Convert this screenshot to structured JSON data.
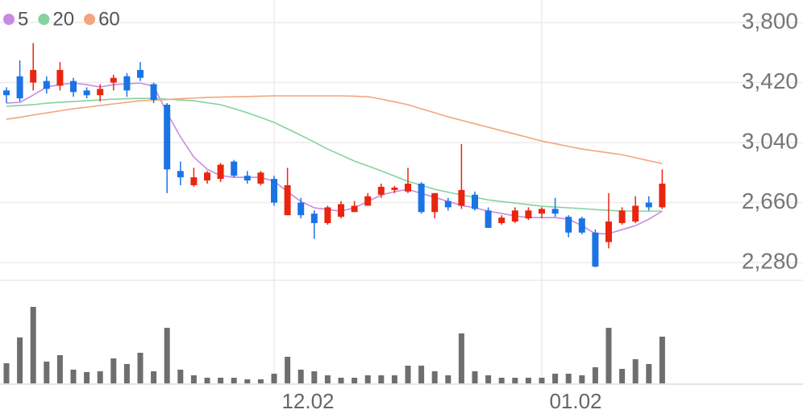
{
  "chart_data": {
    "type": "candlestick",
    "categories": [
      null,
      null,
      null,
      null,
      null,
      null,
      null,
      null,
      null,
      null,
      null,
      null,
      null,
      null,
      null,
      null,
      null,
      null,
      null,
      null,
      "12.02",
      null,
      null,
      null,
      null,
      null,
      null,
      null,
      null,
      null,
      null,
      null,
      null,
      null,
      null,
      null,
      null,
      null,
      null,
      null,
      "01.02",
      null,
      null,
      null,
      null,
      null,
      null,
      null,
      null,
      null
    ],
    "open": [
      3370,
      3460,
      3420,
      3430,
      3400,
      3430,
      3370,
      3340,
      3420,
      3460,
      3500,
      3410,
      3280,
      2860,
      2770,
      2800,
      2810,
      2920,
      2830,
      2780,
      2810,
      2580,
      2660,
      2590,
      2530,
      2570,
      2600,
      2640,
      2710,
      2740,
      2730,
      2780,
      2600,
      2670,
      2640,
      2710,
      2610,
      2530,
      2540,
      2560,
      2590,
      2620,
      2570,
      2560,
      2470,
      2410,
      2530,
      2540,
      2660,
      2630
    ],
    "high": [
      3390,
      3560,
      3670,
      3460,
      3550,
      3450,
      3390,
      3410,
      3470,
      3480,
      3550,
      3420,
      3290,
      2920,
      2880,
      2860,
      2910,
      2930,
      2860,
      2860,
      2830,
      2880,
      2690,
      2610,
      2640,
      2670,
      2670,
      2720,
      2780,
      2765,
      2880,
      2790,
      2720,
      2690,
      3030,
      2730,
      2630,
      2580,
      2630,
      2630,
      2630,
      2690,
      2580,
      2570,
      2490,
      2720,
      2630,
      2700,
      2700,
      2870
    ],
    "low": [
      3290,
      3300,
      3370,
      3350,
      3370,
      3330,
      3320,
      3300,
      3370,
      3330,
      3430,
      3290,
      2720,
      2770,
      2760,
      2780,
      2790,
      2820,
      2780,
      2770,
      2640,
      2580,
      2560,
      2430,
      2520,
      2560,
      2600,
      2640,
      2690,
      2720,
      2720,
      2590,
      2560,
      2610,
      2620,
      2610,
      2500,
      2520,
      2530,
      2550,
      2560,
      2570,
      2440,
      2460,
      2250,
      2370,
      2520,
      2530,
      2610,
      2620
    ],
    "close": [
      3340,
      3320,
      3500,
      3380,
      3500,
      3360,
      3340,
      3380,
      3450,
      3370,
      3450,
      3310,
      2870,
      2820,
      2820,
      2850,
      2900,
      2830,
      2800,
      2850,
      2660,
      2770,
      2580,
      2530,
      2630,
      2650,
      2640,
      2700,
      2760,
      2755,
      2780,
      2600,
      2720,
      2630,
      2740,
      2620,
      2500,
      2565,
      2610,
      2610,
      2620,
      2590,
      2470,
      2470,
      2255,
      2540,
      2610,
      2640,
      2630,
      2780
    ],
    "up_color": "#e8260f",
    "down_color": "#1b74e4",
    "ma_series": [
      {
        "name": "5",
        "color": "#c98ae6",
        "values": [
          3290,
          3295,
          3341,
          3392,
          3407,
          3417,
          3407,
          3392,
          3407,
          3412,
          3417,
          3397,
          3229,
          3076,
          2948,
          2871,
          2831,
          2820,
          2820,
          2820,
          2795,
          2729,
          2667,
          2627,
          2616,
          2606,
          2627,
          2667,
          2708,
          2729,
          2744,
          2718,
          2693,
          2667,
          2642,
          2627,
          2606,
          2591,
          2576,
          2565,
          2565,
          2565,
          2555,
          2514,
          2463,
          2463,
          2489,
          2514,
          2555,
          2606
        ]
      },
      {
        "name": "20",
        "color": "#84d39e",
        "values": [
          3270,
          3275,
          3280,
          3290,
          3295,
          3300,
          3305,
          3310,
          3315,
          3318,
          3320,
          3320,
          3315,
          3310,
          3305,
          3292,
          3280,
          3255,
          3229,
          3199,
          3168,
          3127,
          3086,
          3043,
          2999,
          2961,
          2923,
          2892,
          2861,
          2828,
          2795,
          2770,
          2744,
          2726,
          2708,
          2693,
          2677,
          2667,
          2657,
          2647,
          2637,
          2632,
          2627,
          2622,
          2616,
          2611,
          2606,
          2606,
          2606,
          2606
        ]
      },
      {
        "name": "60",
        "color": "#f3a57f",
        "values": [
          3188,
          3200,
          3215,
          3228,
          3241,
          3254,
          3264,
          3275,
          3285,
          3295,
          3305,
          3309,
          3313,
          3318,
          3322,
          3326,
          3328,
          3330,
          3332,
          3334,
          3336,
          3336,
          3336,
          3336,
          3336,
          3336,
          3334,
          3331,
          3315,
          3298,
          3280,
          3254,
          3229,
          3203,
          3181,
          3159,
          3137,
          3115,
          3094,
          3072,
          3050,
          3033,
          3016,
          2999,
          2987,
          2975,
          2963,
          2944,
          2925,
          2907
        ]
      }
    ],
    "volume": [
      25,
      57,
      95,
      27,
      35,
      17,
      14,
      15,
      31,
      24,
      38,
      15,
      69,
      17,
      10,
      7,
      7,
      7,
      5,
      5,
      12,
      33,
      17,
      15,
      10,
      7,
      7,
      10,
      10,
      10,
      22,
      22,
      15,
      10,
      62,
      15,
      10,
      7,
      7,
      7,
      7,
      12,
      12,
      10,
      20,
      69,
      18,
      30,
      24,
      58
    ],
    "volume_color": "#6e6e6e",
    "volume_ylim": [
      0,
      100
    ],
    "ylim": [
      2168,
      3943
    ],
    "yticks": [
      {
        "value": 2280,
        "label": "2,280"
      },
      {
        "value": 2660,
        "label": "2,660"
      },
      {
        "value": 3040,
        "label": "3,040"
      },
      {
        "value": 3420,
        "label": "3,420"
      },
      {
        "value": 3800,
        "label": "3,800"
      }
    ],
    "grid": true
  }
}
